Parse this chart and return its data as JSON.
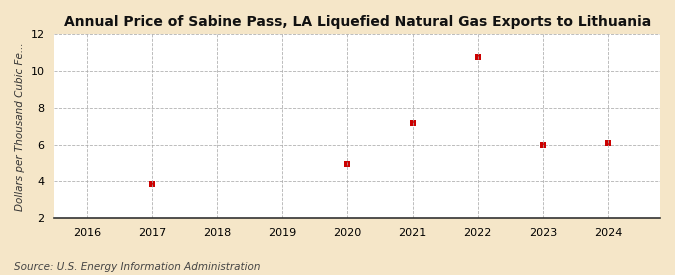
{
  "title": "Annual Price of Sabine Pass, LA Liquefied Natural Gas Exports to Lithuania",
  "ylabel": "Dollars per Thousand Cubic Fe...",
  "source": "Source: U.S. Energy Information Administration",
  "x_data": [
    2017,
    2020,
    2021,
    2022,
    2023,
    2024
  ],
  "y_data": [
    3.85,
    4.95,
    7.2,
    10.75,
    6.0,
    6.1
  ],
  "xlim": [
    2015.5,
    2024.8
  ],
  "ylim": [
    2,
    12
  ],
  "yticks": [
    2,
    4,
    6,
    8,
    10,
    12
  ],
  "xticks": [
    2016,
    2017,
    2018,
    2019,
    2020,
    2021,
    2022,
    2023,
    2024
  ],
  "marker_color": "#cc0000",
  "marker_size": 5,
  "background_color": "#f5e6c8",
  "plot_bg_color": "#ffffff",
  "grid_color": "#aaaaaa",
  "title_fontsize": 10,
  "label_fontsize": 7.5,
  "tick_fontsize": 8,
  "source_fontsize": 7.5
}
